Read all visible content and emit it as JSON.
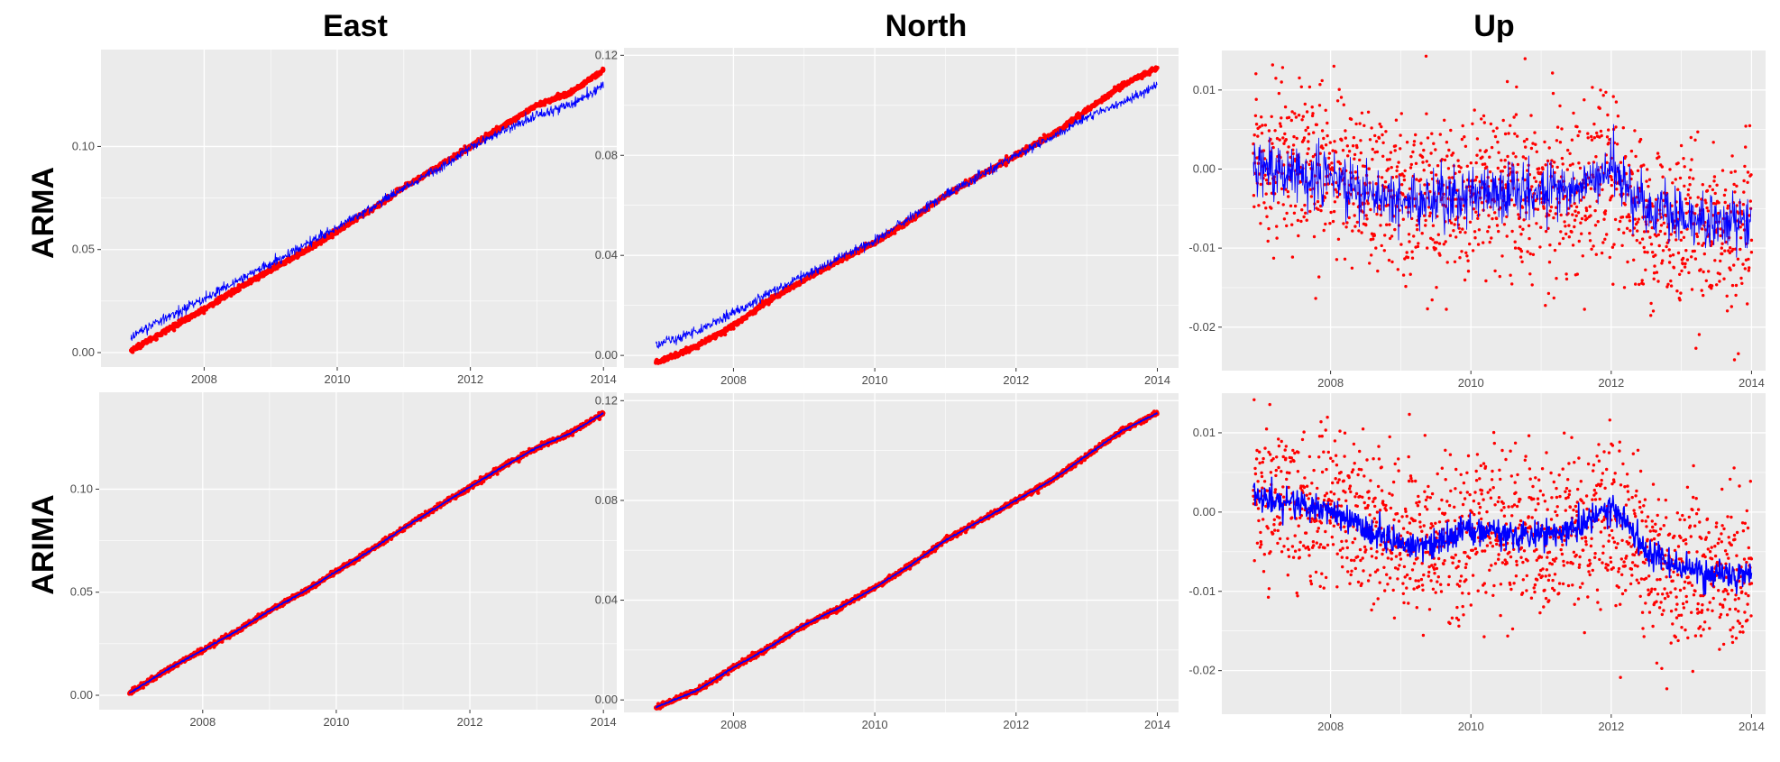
{
  "figure": {
    "column_titles": [
      "East",
      "North",
      "Up"
    ],
    "row_titles": [
      "ARMA",
      "ARIMA"
    ],
    "colors": {
      "observed": "#ff0000",
      "fitted": "#0000ff",
      "panel_bg": "#ebebeb",
      "grid": "#ffffff"
    }
  },
  "chart_data": [
    {
      "type": "scatter",
      "panel": "ARMA-East",
      "component": "East",
      "model": "ARMA",
      "title": "",
      "xlabel": "",
      "ylabel": "",
      "xlim": [
        2006.45,
        2014.2
      ],
      "ylim": [
        -0.007,
        0.147
      ],
      "xticks": [
        2008,
        2010,
        2012,
        2014
      ],
      "xtick_labels": [
        "2008",
        "2010",
        "2012",
        "2014"
      ],
      "yticks": [
        0.0,
        0.05,
        0.1
      ],
      "ytick_labels": [
        "0.00",
        "0.05",
        "0.10"
      ],
      "series": [
        {
          "name": "observed",
          "style": "points",
          "color": "#ff0000",
          "x": [
            2006.9,
            2007.5,
            2008.0,
            2008.5,
            2009.0,
            2009.5,
            2010.0,
            2010.5,
            2011.0,
            2011.5,
            2012.0,
            2012.5,
            2013.0,
            2013.5,
            2014.0
          ],
          "y": [
            0.001,
            0.012,
            0.021,
            0.031,
            0.04,
            0.049,
            0.059,
            0.069,
            0.08,
            0.09,
            0.1,
            0.11,
            0.12,
            0.126,
            0.137
          ]
        },
        {
          "name": "fitted",
          "style": "line",
          "color": "#0000ff",
          "x": [
            2006.9,
            2007.5,
            2008.0,
            2008.5,
            2009.0,
            2009.5,
            2010.0,
            2010.5,
            2011.0,
            2011.5,
            2012.0,
            2012.5,
            2013.0,
            2013.5,
            2014.0
          ],
          "y": [
            0.008,
            0.018,
            0.026,
            0.035,
            0.043,
            0.052,
            0.061,
            0.07,
            0.08,
            0.089,
            0.099,
            0.108,
            0.115,
            0.12,
            0.13
          ]
        }
      ]
    },
    {
      "type": "scatter",
      "panel": "ARMA-North",
      "component": "North",
      "model": "ARMA",
      "title": "",
      "xlabel": "",
      "ylabel": "",
      "xlim": [
        2006.45,
        2014.3
      ],
      "ylim": [
        -0.005,
        0.123
      ],
      "xticks": [
        2008,
        2010,
        2012,
        2014
      ],
      "xtick_labels": [
        "2008",
        "2010",
        "2012",
        "2014"
      ],
      "yticks": [
        0.0,
        0.04,
        0.08,
        0.12
      ],
      "ytick_labels": [
        "0.00",
        "0.04",
        "0.08",
        "0.12"
      ],
      "series": [
        {
          "name": "observed",
          "style": "points",
          "color": "#ff0000",
          "x": [
            2006.9,
            2007.5,
            2008.0,
            2008.5,
            2009.0,
            2009.5,
            2010.0,
            2010.5,
            2011.0,
            2011.5,
            2012.0,
            2012.5,
            2013.0,
            2013.5,
            2014.0
          ],
          "y": [
            -0.003,
            0.004,
            0.012,
            0.022,
            0.03,
            0.038,
            0.045,
            0.054,
            0.064,
            0.072,
            0.08,
            0.088,
            0.098,
            0.108,
            0.115
          ]
        },
        {
          "name": "fitted",
          "style": "line",
          "color": "#0000ff",
          "x": [
            2006.9,
            2007.5,
            2008.0,
            2008.5,
            2009.0,
            2009.5,
            2010.0,
            2010.5,
            2011.0,
            2011.5,
            2012.0,
            2012.5,
            2013.0,
            2013.5,
            2014.0
          ],
          "y": [
            0.004,
            0.01,
            0.017,
            0.025,
            0.032,
            0.039,
            0.046,
            0.055,
            0.064,
            0.072,
            0.08,
            0.087,
            0.095,
            0.101,
            0.108
          ]
        }
      ]
    },
    {
      "type": "scatter",
      "panel": "ARMA-Up",
      "component": "Up",
      "model": "ARMA",
      "title": "",
      "xlabel": "",
      "ylabel": "",
      "xlim": [
        2006.45,
        2014.2
      ],
      "ylim": [
        -0.0255,
        0.015
      ],
      "xticks": [
        2008,
        2010,
        2012,
        2014
      ],
      "xtick_labels": [
        "2008",
        "2010",
        "2012",
        "2014"
      ],
      "yticks": [
        -0.02,
        -0.01,
        0.0,
        0.01
      ],
      "ytick_labels": [
        "-0.02",
        "-0.01",
        "0.00",
        "0.01"
      ],
      "series": [
        {
          "name": "observed",
          "style": "points",
          "color": "#ff0000",
          "x": [
            2006.9,
            2007.5,
            2008.0,
            2008.5,
            2009.0,
            2009.5,
            2010.0,
            2010.5,
            2011.0,
            2011.5,
            2012.0,
            2012.5,
            2013.0,
            2013.5,
            2014.0
          ],
          "y": [
            0.002,
            0.001,
            0.0,
            -0.002,
            -0.003,
            -0.004,
            -0.003,
            -0.002,
            -0.003,
            -0.003,
            -0.001,
            -0.007,
            -0.008,
            -0.008,
            -0.009
          ]
        },
        {
          "name": "fitted",
          "style": "line",
          "color": "#0000ff",
          "x": [
            2006.9,
            2007.5,
            2008.0,
            2008.5,
            2009.0,
            2009.5,
            2010.0,
            2010.5,
            2011.0,
            2011.5,
            2012.0,
            2012.5,
            2013.0,
            2013.5,
            2014.0
          ],
          "y": [
            0.0,
            -0.001,
            -0.001,
            -0.003,
            -0.004,
            -0.004,
            -0.003,
            -0.003,
            -0.003,
            -0.003,
            0.0,
            -0.005,
            -0.006,
            -0.007,
            -0.007
          ]
        }
      ]
    },
    {
      "type": "scatter",
      "panel": "ARIMA-East",
      "component": "East",
      "model": "ARIMA",
      "title": "",
      "xlabel": "",
      "ylabel": "",
      "xlim": [
        2006.45,
        2014.2
      ],
      "ylim": [
        -0.007,
        0.147
      ],
      "xticks": [
        2008,
        2010,
        2012,
        2014
      ],
      "xtick_labels": [
        "2008",
        "2010",
        "2012",
        "2014"
      ],
      "yticks": [
        0.0,
        0.05,
        0.1
      ],
      "ytick_labels": [
        "0.00",
        "0.05",
        "0.10"
      ],
      "series": [
        {
          "name": "observed",
          "style": "points",
          "color": "#ff0000",
          "x": [
            2006.9,
            2007.5,
            2008.0,
            2008.5,
            2009.0,
            2009.5,
            2010.0,
            2010.5,
            2011.0,
            2011.5,
            2012.0,
            2012.5,
            2013.0,
            2013.5,
            2014.0
          ],
          "y": [
            0.001,
            0.013,
            0.022,
            0.031,
            0.041,
            0.05,
            0.06,
            0.07,
            0.081,
            0.091,
            0.101,
            0.111,
            0.12,
            0.127,
            0.137
          ]
        },
        {
          "name": "fitted",
          "style": "line",
          "color": "#0000ff",
          "x": [
            2006.9,
            2007.5,
            2008.0,
            2008.5,
            2009.0,
            2009.5,
            2010.0,
            2010.5,
            2011.0,
            2011.5,
            2012.0,
            2012.5,
            2013.0,
            2013.5,
            2014.0
          ],
          "y": [
            0.001,
            0.013,
            0.022,
            0.031,
            0.041,
            0.05,
            0.06,
            0.07,
            0.081,
            0.091,
            0.101,
            0.111,
            0.12,
            0.127,
            0.137
          ]
        }
      ]
    },
    {
      "type": "scatter",
      "panel": "ARIMA-North",
      "component": "North",
      "model": "ARIMA",
      "title": "",
      "xlabel": "",
      "ylabel": "",
      "xlim": [
        2006.45,
        2014.3
      ],
      "ylim": [
        -0.005,
        0.123
      ],
      "xticks": [
        2008,
        2010,
        2012,
        2014
      ],
      "xtick_labels": [
        "2008",
        "2010",
        "2012",
        "2014"
      ],
      "yticks": [
        0.0,
        0.04,
        0.08,
        0.12
      ],
      "ytick_labels": [
        "0.00",
        "0.04",
        "0.08",
        "0.12"
      ],
      "series": [
        {
          "name": "observed",
          "style": "points",
          "color": "#ff0000",
          "x": [
            2006.9,
            2007.5,
            2008.0,
            2008.5,
            2009.0,
            2009.5,
            2010.0,
            2010.5,
            2011.0,
            2011.5,
            2012.0,
            2012.5,
            2013.0,
            2013.5,
            2014.0
          ],
          "y": [
            -0.003,
            0.004,
            0.013,
            0.021,
            0.03,
            0.037,
            0.045,
            0.054,
            0.064,
            0.072,
            0.08,
            0.088,
            0.098,
            0.108,
            0.115
          ]
        },
        {
          "name": "fitted",
          "style": "line",
          "color": "#0000ff",
          "x": [
            2006.9,
            2007.5,
            2008.0,
            2008.5,
            2009.0,
            2009.5,
            2010.0,
            2010.5,
            2011.0,
            2011.5,
            2012.0,
            2012.5,
            2013.0,
            2013.5,
            2014.0
          ],
          "y": [
            -0.003,
            0.004,
            0.013,
            0.021,
            0.03,
            0.037,
            0.045,
            0.054,
            0.064,
            0.072,
            0.08,
            0.088,
            0.098,
            0.108,
            0.115
          ]
        }
      ]
    },
    {
      "type": "scatter",
      "panel": "ARIMA-Up",
      "component": "Up",
      "model": "ARIMA",
      "title": "",
      "xlabel": "",
      "ylabel": "",
      "xlim": [
        2006.45,
        2014.2
      ],
      "ylim": [
        -0.0255,
        0.015
      ],
      "xticks": [
        2008,
        2010,
        2012,
        2014
      ],
      "xtick_labels": [
        "2008",
        "2010",
        "2012",
        "2014"
      ],
      "yticks": [
        -0.02,
        -0.01,
        0.0,
        0.01
      ],
      "ytick_labels": [
        "-0.02",
        "-0.01",
        "0.00",
        "0.01"
      ],
      "series": [
        {
          "name": "observed",
          "style": "points",
          "color": "#ff0000",
          "x": [
            2006.9,
            2007.5,
            2008.0,
            2008.5,
            2009.0,
            2009.5,
            2010.0,
            2010.5,
            2011.0,
            2011.5,
            2012.0,
            2012.5,
            2013.0,
            2013.5,
            2014.0
          ],
          "y": [
            0.002,
            0.001,
            0.001,
            -0.002,
            -0.003,
            -0.004,
            -0.003,
            -0.003,
            -0.003,
            -0.003,
            -0.001,
            -0.006,
            -0.008,
            -0.008,
            -0.009
          ]
        },
        {
          "name": "fitted",
          "style": "line",
          "color": "#0000ff",
          "x": [
            2006.9,
            2007.5,
            2008.0,
            2008.5,
            2009.0,
            2009.5,
            2010.0,
            2010.5,
            2011.0,
            2011.5,
            2012.0,
            2012.5,
            2013.0,
            2013.5,
            2014.0
          ],
          "y": [
            0.002,
            0.001,
            0.0,
            -0.002,
            -0.004,
            -0.004,
            -0.002,
            -0.003,
            -0.003,
            -0.002,
            0.001,
            -0.005,
            -0.007,
            -0.008,
            -0.008
          ]
        }
      ]
    }
  ]
}
